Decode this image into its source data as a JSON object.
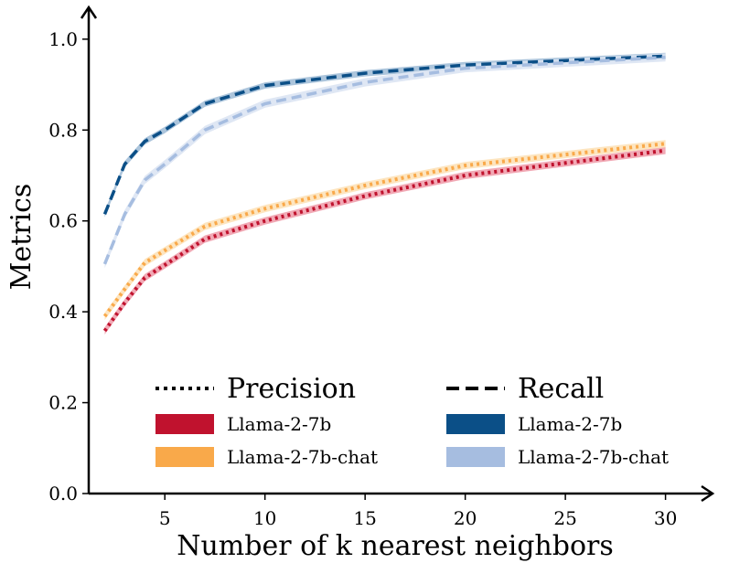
{
  "chart_data": {
    "type": "line",
    "title": "",
    "xlabel": "Number of k nearest neighbors",
    "ylabel": "Metrics",
    "xlim": [
      1.2,
      31.8
    ],
    "ylim": [
      0.0,
      1.05
    ],
    "xticks": [
      5,
      10,
      15,
      20,
      25,
      30
    ],
    "yticks": [
      0.0,
      0.2,
      0.4,
      0.6,
      0.8,
      1.0
    ],
    "x": [
      2,
      3,
      4,
      5,
      7,
      10,
      15,
      20,
      30
    ],
    "series": [
      {
        "name": "Precision — Llama-2-7b",
        "metric": "Precision",
        "model": "Llama-2-7b",
        "linestyle": "dotted",
        "color": "#c0122e",
        "band_color": "#ee9aa8",
        "values": [
          0.358,
          0.42,
          0.475,
          0.503,
          0.56,
          0.6,
          0.655,
          0.7,
          0.755
        ],
        "band": 0.008
      },
      {
        "name": "Precision — Llama-2-7b-chat",
        "metric": "Precision",
        "model": "Llama-2-7b-chat",
        "linestyle": "dotted",
        "color": "#f9a94a",
        "band_color": "#fde0b5",
        "values": [
          0.39,
          0.45,
          0.508,
          0.535,
          0.588,
          0.627,
          0.678,
          0.722,
          0.77
        ],
        "band": 0.008
      },
      {
        "name": "Recall — Llama-2-7b",
        "metric": "Recall",
        "model": "Llama-2-7b",
        "linestyle": "dashed",
        "color": "#0b4f87",
        "band_color": "#9ebbd6",
        "values": [
          0.615,
          0.725,
          0.775,
          0.8,
          0.858,
          0.898,
          0.925,
          0.943,
          0.963
        ],
        "band": 0.007
      },
      {
        "name": "Recall — Llama-2-7b-chat",
        "metric": "Recall",
        "model": "Llama-2-7b-chat",
        "linestyle": "dashed",
        "color": "#a6bde0",
        "band_color": "#d9e3f2",
        "values": [
          0.505,
          0.615,
          0.69,
          0.725,
          0.8,
          0.858,
          0.905,
          0.936,
          0.96
        ],
        "band": 0.009
      }
    ],
    "legend": {
      "placement": "lower-center",
      "columns": [
        {
          "header": "Precision",
          "header_style": "dotted",
          "entries": [
            "Llama-2-7b",
            "Llama-2-7b-chat"
          ]
        },
        {
          "header": "Recall",
          "header_style": "dashed",
          "entries": [
            "Llama-2-7b",
            "Llama-2-7b-chat"
          ]
        }
      ]
    },
    "grid": false
  }
}
